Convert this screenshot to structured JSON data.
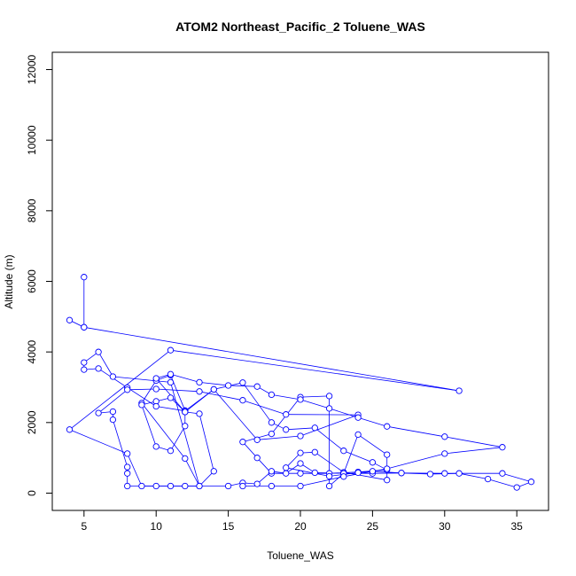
{
  "chart_data": {
    "type": "line",
    "title": "ATOM2 Northeast_Pacific_2 Toluene_WAS",
    "xlabel": "Toluene_WAS",
    "ylabel": "Altitude (m)",
    "xlim": [
      2.8,
      37.2
    ],
    "ylim": [
      -490,
      12490
    ],
    "xticks": [
      5,
      10,
      15,
      20,
      25,
      30,
      35
    ],
    "yticks": [
      0,
      2000,
      4000,
      6000,
      8000,
      10000,
      12000
    ],
    "marker": "open-circle",
    "grid": false,
    "legend": "none",
    "color": "#0000ff",
    "series": [
      {
        "x": [
          5,
          5,
          4,
          5,
          31,
          11,
          4,
          8,
          9,
          10,
          11,
          12,
          13,
          12,
          9,
          10,
          11,
          12,
          12,
          11,
          10,
          9,
          10,
          11,
          12,
          13,
          14,
          13,
          11,
          7,
          6,
          5,
          5,
          6,
          8,
          10,
          12,
          14,
          16,
          18,
          19,
          21,
          23,
          25,
          26,
          24,
          22,
          20,
          18,
          17,
          16,
          18,
          20,
          22,
          22,
          23,
          25,
          27,
          30,
          34,
          36,
          35,
          33,
          31,
          29,
          27,
          25,
          24,
          22,
          19,
          20,
          21,
          23,
          26,
          26,
          24,
          23,
          21,
          20,
          19,
          18,
          17,
          16,
          15,
          8,
          8,
          8,
          7,
          7,
          6,
          8,
          10,
          13,
          16,
          19,
          24,
          20,
          17,
          14,
          12,
          10,
          11,
          13,
          15,
          17,
          18,
          20,
          22,
          24,
          26,
          30,
          34,
          30,
          26,
          23,
          20,
          18,
          16
        ],
        "y": [
          6120,
          4700,
          4900,
          4700,
          2900,
          4050,
          1800,
          1120,
          200,
          200,
          200,
          200,
          200,
          980,
          2550,
          3190,
          3340,
          2340,
          1900,
          1200,
          1320,
          2500,
          2600,
          2700,
          2300,
          2250,
          620,
          200,
          3140,
          3300,
          4000,
          3700,
          3500,
          3530,
          2990,
          2460,
          2330,
          2940,
          3130,
          2000,
          1800,
          1850,
          1200,
          870,
          660,
          600,
          560,
          560,
          560,
          1000,
          1450,
          1680,
          2720,
          2750,
          200,
          560,
          560,
          570,
          560,
          560,
          320,
          160,
          400,
          560,
          540,
          570,
          620,
          580,
          480,
          720,
          1140,
          1160,
          590,
          370,
          1090,
          1660,
          560,
          580,
          840,
          560,
          620,
          260,
          290,
          200,
          200,
          560,
          740,
          2080,
          2310,
          2270,
          2930,
          2950,
          2880,
          2630,
          2230,
          2220,
          1620,
          1510,
          2940,
          2300,
          3250,
          3370,
          3140,
          3050,
          3020,
          2790,
          2650,
          2400,
          2140,
          1890,
          1600,
          1300,
          1120,
          690,
          470,
          200,
          200,
          200
        ]
      }
    ]
  }
}
